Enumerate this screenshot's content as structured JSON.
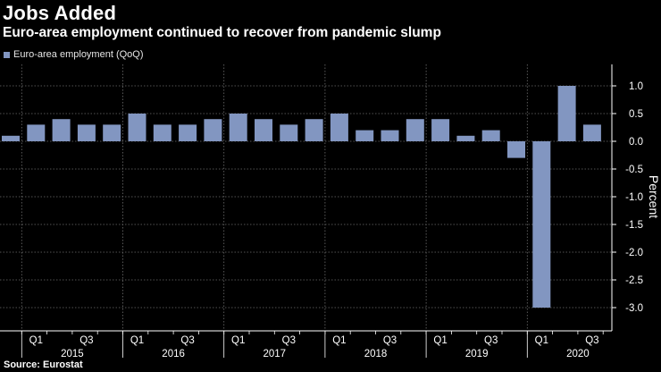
{
  "title": "Jobs Added",
  "subtitle": "Euro-area employment continued to recover from pandemic slump",
  "legend_label": "Euro-area employment (QoQ)",
  "source": "Source: Eurostat",
  "colors": {
    "bar": "#8296c1",
    "background": "#000000",
    "grid": "#6e6e6e",
    "axis": "#ffffff"
  },
  "chart_data": {
    "type": "bar",
    "title": "Jobs Added",
    "subtitle": "Euro-area employment continued to recover from pandemic slump",
    "xlabel": "",
    "ylabel": "Percent",
    "ylim": [
      -3.25,
      1.5
    ],
    "yticks": [
      1.0,
      0.5,
      0.0,
      -0.5,
      -1.0,
      -1.5,
      -2.0,
      -2.5,
      -3.0
    ],
    "ytick_labels": [
      "1.0",
      "0.5",
      "0.0",
      "-0.5",
      "-1.0",
      "-1.5",
      "-2.0",
      "-2.5",
      "-3.0"
    ],
    "legend_position": "top-left",
    "grid": true,
    "categories": [
      "2014 Q4",
      "2015 Q1",
      "2015 Q2",
      "2015 Q3",
      "2015 Q4",
      "2016 Q1",
      "2016 Q2",
      "2016 Q3",
      "2016 Q4",
      "2017 Q1",
      "2017 Q2",
      "2017 Q3",
      "2017 Q4",
      "2018 Q1",
      "2018 Q2",
      "2018 Q3",
      "2018 Q4",
      "2019 Q1",
      "2019 Q2",
      "2019 Q3",
      "2019 Q4",
      "2020 Q1",
      "2020 Q2",
      "2020 Q3",
      "2020 Q4"
    ],
    "series": [
      {
        "name": "Euro-area employment (QoQ)",
        "values": [
          0.1,
          0.3,
          0.4,
          0.3,
          0.3,
          0.5,
          0.3,
          0.3,
          0.4,
          0.5,
          0.4,
          0.3,
          0.4,
          0.5,
          0.2,
          0.2,
          0.4,
          0.4,
          0.1,
          0.2,
          -0.3,
          -3.0,
          1.0,
          0.3,
          null
        ]
      }
    ],
    "quarter_labels": [
      "Q1",
      "Q3",
      "Q1",
      "Q3",
      "Q1",
      "Q3",
      "Q1",
      "Q3",
      "Q1",
      "Q3",
      "Q1",
      "Q3"
    ],
    "quarter_label_index": [
      1,
      3,
      5,
      7,
      9,
      11,
      13,
      15,
      17,
      19,
      21,
      23
    ],
    "years": [
      "2015",
      "2016",
      "2017",
      "2018",
      "2019",
      "2020"
    ]
  }
}
